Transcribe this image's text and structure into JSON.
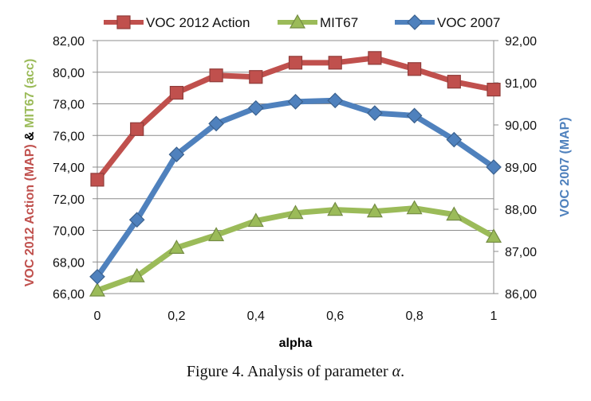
{
  "chart_data": {
    "type": "line",
    "x": [
      0,
      0.1,
      0.2,
      0.3,
      0.4,
      0.5,
      0.6,
      0.7,
      0.8,
      0.9,
      1
    ],
    "x_tick_labels": [
      "0",
      "0,2",
      "0,4",
      "0,6",
      "0,8",
      "1"
    ],
    "xlabel": "alpha",
    "y_left": {
      "ylim": [
        66,
        82
      ],
      "tick_labels": [
        "66,00",
        "68,00",
        "70,00",
        "72,00",
        "74,00",
        "76,00",
        "78,00",
        "80,00",
        "82,00"
      ],
      "label_parts": [
        {
          "text": "VOC 2012 Action (MAP)",
          "color": "#c0504d"
        },
        {
          "text": "&",
          "color": "#000000"
        },
        {
          "text": "MIT67 (acc)",
          "color": "#9bbb59"
        }
      ]
    },
    "y_right": {
      "ylim": [
        86,
        92
      ],
      "tick_labels": [
        "86,00",
        "87,00",
        "88,00",
        "89,00",
        "90,00",
        "91,00",
        "92,00"
      ],
      "label": "VOC 2007 (MAP)",
      "label_color": "#4f81bd"
    },
    "series": [
      {
        "name": "VOC 2012 Action",
        "axis": "left",
        "marker": "square",
        "color": "#c0504d",
        "values": [
          73.2,
          76.4,
          78.7,
          79.8,
          79.7,
          80.6,
          80.6,
          80.9,
          80.2,
          79.4,
          78.9
        ]
      },
      {
        "name": "MIT67",
        "axis": "left",
        "marker": "triangle",
        "color": "#9bbb59",
        "values": [
          66.2,
          67.1,
          68.9,
          69.7,
          70.6,
          71.1,
          71.3,
          71.2,
          71.4,
          71.0,
          69.6
        ]
      },
      {
        "name": "VOC 2007",
        "axis": "right",
        "marker": "diamond",
        "color": "#4f81bd",
        "values": [
          86.4,
          87.75,
          89.3,
          90.03,
          90.4,
          90.55,
          90.58,
          90.28,
          90.22,
          89.65,
          89.0
        ]
      }
    ],
    "grid": "horizontal",
    "legend_position": "top"
  },
  "caption": {
    "prefix": "Figure 4. Analysis of parameter ",
    "symbol": "α",
    "suffix": "."
  }
}
